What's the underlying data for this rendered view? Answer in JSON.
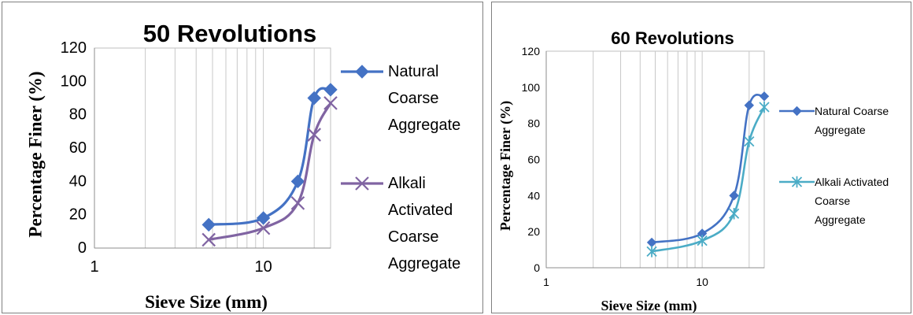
{
  "chart_data": [
    {
      "type": "line",
      "title": "50 Revolutions",
      "xlabel": "Sieve Size (mm)",
      "ylabel": "Percentage Finer (%)",
      "xscale": "log",
      "xlim": [
        1,
        25
      ],
      "ylim": [
        0,
        120
      ],
      "x_ticks": [
        "1",
        "10"
      ],
      "y_ticks": [
        "0",
        "20",
        "40",
        "60",
        "80",
        "100",
        "120"
      ],
      "grid": "vertical log gridlines",
      "legend_position": "right",
      "series": [
        {
          "name": "Natural Coarse Aggregate",
          "legend_lines": [
            "Natural",
            "Coarse",
            "Aggregate"
          ],
          "color": "#4472c4",
          "marker": "diamond",
          "x": [
            4.75,
            10,
            16,
            20,
            25
          ],
          "y": [
            14,
            18,
            40,
            90,
            95
          ]
        },
        {
          "name": "Alkali Activated Coarse Aggregate",
          "legend_lines": [
            "Alkali",
            "Activated",
            "Coarse",
            "Aggregate"
          ],
          "color": "#8064a2",
          "marker": "x",
          "x": [
            4.75,
            10,
            16,
            20,
            25
          ],
          "y": [
            5,
            12,
            27,
            68,
            87
          ]
        }
      ]
    },
    {
      "type": "line",
      "title": "60 Revolutions",
      "xlabel": "Sieve Size (mm)",
      "ylabel": "Percentage Finer (%)",
      "xscale": "log",
      "xlim": [
        1,
        25
      ],
      "ylim": [
        0,
        120
      ],
      "x_ticks": [
        "1",
        "10"
      ],
      "y_ticks": [
        "0",
        "20",
        "40",
        "60",
        "80",
        "100",
        "120"
      ],
      "grid": "vertical log gridlines",
      "legend_position": "right",
      "series": [
        {
          "name": "Natural Coarse Aggregate",
          "legend_lines": [
            "Natural Coarse",
            "Aggregate"
          ],
          "color": "#4472c4",
          "marker": "diamond",
          "x": [
            4.75,
            10,
            16,
            20,
            25
          ],
          "y": [
            14,
            19,
            40,
            90,
            95
          ]
        },
        {
          "name": "Alkali Activated Coarse Aggregate",
          "legend_lines": [
            "Alkali Activated",
            "Coarse",
            "Aggregate"
          ],
          "color": "#4bacc6",
          "marker": "star",
          "x": [
            4.75,
            10,
            16,
            20,
            25
          ],
          "y": [
            9,
            15,
            30,
            70,
            89
          ]
        }
      ]
    }
  ]
}
